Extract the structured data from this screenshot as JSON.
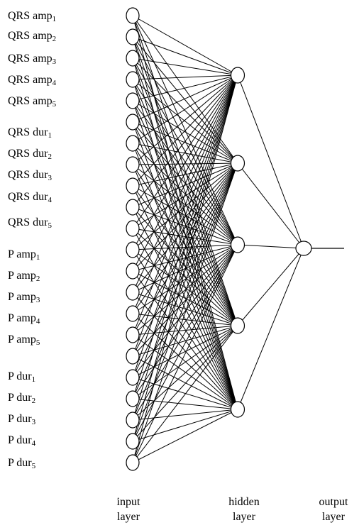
{
  "input_labels": [
    {
      "base": "QRS amp",
      "sub": "1"
    },
    {
      "base": "QRS amp",
      "sub": "2"
    },
    {
      "base": "QRS amp",
      "sub": "3"
    },
    {
      "base": "QRS amp",
      "sub": "4"
    },
    {
      "base": "QRS amp",
      "sub": "5"
    },
    {
      "base": "QRS dur",
      "sub": "1"
    },
    {
      "base": "QRS dur",
      "sub": "2"
    },
    {
      "base": "QRS dur",
      "sub": "3"
    },
    {
      "base": "QRS dur",
      "sub": "4"
    },
    {
      "base": "QRS dur",
      "sub": "5"
    },
    {
      "base": "P amp",
      "sub": "1"
    },
    {
      "base": "P amp",
      "sub": "2"
    },
    {
      "base": "P amp",
      "sub": "3"
    },
    {
      "base": "P amp",
      "sub": "4"
    },
    {
      "base": "P amp",
      "sub": "5"
    },
    {
      "base": "P dur",
      "sub": "1"
    },
    {
      "base": "P dur",
      "sub": "2"
    },
    {
      "base": "P dur",
      "sub": "3"
    },
    {
      "base": "P dur",
      "sub": "4"
    },
    {
      "base": "P dur",
      "sub": "5"
    }
  ],
  "layer_captions": {
    "input": {
      "line1": "input",
      "line2": "layer"
    },
    "hidden": {
      "line1": "hidden",
      "line2": "layer"
    },
    "output": {
      "line1": "output",
      "line2": "layer"
    }
  },
  "network": {
    "input_node_count": 22,
    "hidden_node_count": 5,
    "output_node_count": 1
  }
}
